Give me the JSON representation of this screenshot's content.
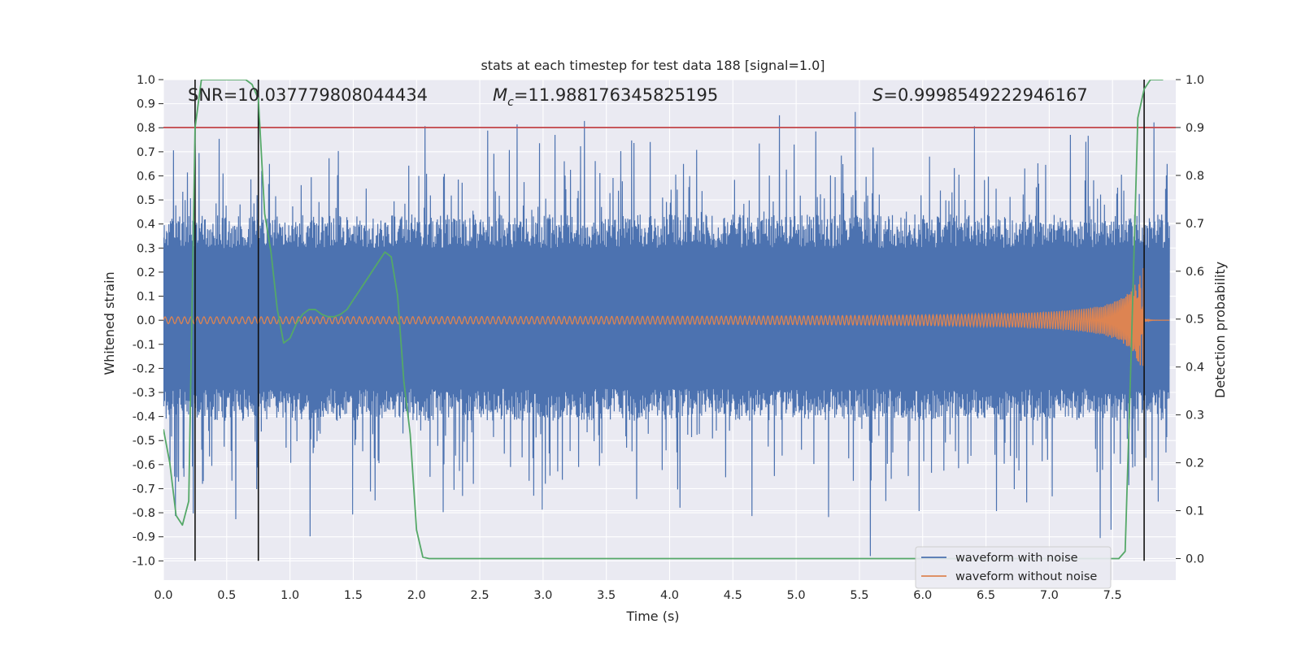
{
  "chart_data": {
    "type": "line",
    "title": "stats at each timestep for test data 188 [signal=1.0]",
    "xlabel": "Time (s)",
    "ylabel": "Whitened strain",
    "y2label": "Detection probability",
    "xlim": [
      0.0,
      8.0
    ],
    "ylim": [
      -1.08,
      1.0
    ],
    "y2lim": [
      -0.045,
      1.0
    ],
    "xticks": [
      "0.0",
      "0.5",
      "1.0",
      "1.5",
      "2.0",
      "2.5",
      "3.0",
      "3.5",
      "4.0",
      "4.5",
      "5.0",
      "5.5",
      "6.0",
      "6.5",
      "7.0",
      "7.5"
    ],
    "yticks": [
      "1.0",
      "0.9",
      "0.8",
      "0.7",
      "0.6",
      "0.5",
      "0.4",
      "0.3",
      "0.2",
      "0.1",
      "0.0",
      "-0.1",
      "-0.2",
      "-0.3",
      "-0.4",
      "-0.5",
      "-0.6",
      "-0.7",
      "-0.8",
      "-0.9",
      "-1.0"
    ],
    "y2ticks": [
      "1.0",
      "0.9",
      "0.8",
      "0.7",
      "0.6",
      "0.5",
      "0.4",
      "0.3",
      "0.2",
      "0.1",
      "0.0"
    ],
    "annotations": {
      "snr": "SNR=10.037779808044434",
      "mc_symbol": "M",
      "mc_sub": "c",
      "mc_value": "=11.988176345825195",
      "s_symbol": "S",
      "s_value": "=0.9998549222946167"
    },
    "threshold": {
      "y2": 0.9,
      "color": "#c44e52"
    },
    "vlines": [
      0.25,
      0.75,
      7.75
    ],
    "series": [
      {
        "name": "waveform with noise",
        "color": "#4c72b0",
        "kind": "noise",
        "core_band": [
          -0.38,
          0.4
        ],
        "peak_range": [
          -0.98,
          0.99
        ]
      },
      {
        "name": "waveform without noise",
        "color": "#dd8452",
        "kind": "chirp",
        "amplitude_start": 0.012,
        "amplitude_end": 0.26,
        "merger_time": 7.75
      },
      {
        "name": "detection probability",
        "color": "#55a868",
        "axis": "y2",
        "x": [
          0.0,
          0.05,
          0.1,
          0.15,
          0.2,
          0.25,
          0.3,
          0.35,
          0.4,
          0.45,
          0.5,
          0.55,
          0.6,
          0.65,
          0.7,
          0.75,
          0.8,
          0.85,
          0.9,
          0.95,
          1.0,
          1.05,
          1.1,
          1.15,
          1.2,
          1.25,
          1.3,
          1.35,
          1.4,
          1.45,
          1.5,
          1.55,
          1.6,
          1.65,
          1.7,
          1.75,
          1.8,
          1.85,
          1.9,
          1.95,
          2.0,
          2.05,
          2.1,
          2.15,
          7.5,
          7.55,
          7.6,
          7.65,
          7.7,
          7.75,
          7.8,
          7.85,
          7.9
        ],
        "y": [
          0.27,
          0.2,
          0.09,
          0.07,
          0.12,
          0.9,
          1.0,
          1.0,
          1.0,
          1.0,
          1.0,
          1.0,
          1.0,
          1.0,
          0.99,
          0.96,
          0.72,
          0.64,
          0.52,
          0.45,
          0.46,
          0.49,
          0.51,
          0.52,
          0.52,
          0.51,
          0.505,
          0.505,
          0.51,
          0.52,
          0.54,
          0.56,
          0.58,
          0.6,
          0.62,
          0.64,
          0.63,
          0.55,
          0.37,
          0.26,
          0.06,
          0.003,
          0.0,
          0.0,
          0.0,
          0.0,
          0.015,
          0.45,
          0.92,
          0.98,
          1.0,
          1.0,
          1.0
        ]
      }
    ],
    "legend": {
      "position": "lower right",
      "entries": [
        "waveform with noise",
        "waveform without noise"
      ]
    },
    "grid": true
  }
}
